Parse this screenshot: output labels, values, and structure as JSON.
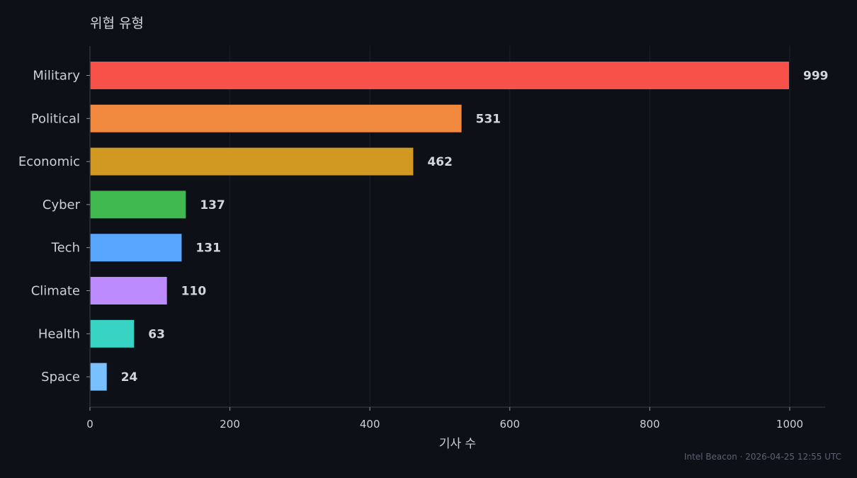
{
  "chart_data": {
    "type": "bar",
    "orientation": "horizontal",
    "title": "위협 유형",
    "xlabel": "기사 수",
    "ylabel": "",
    "categories": [
      "Military",
      "Political",
      "Economic",
      "Cyber",
      "Tech",
      "Climate",
      "Health",
      "Space"
    ],
    "values": [
      999,
      531,
      462,
      137,
      131,
      110,
      63,
      24
    ],
    "colors": [
      "#f85149",
      "#f0883e",
      "#d29922",
      "#3fb950",
      "#58a6ff",
      "#bc8cff",
      "#39d3c3",
      "#79c0ff"
    ],
    "xlim": [
      0,
      1050
    ],
    "xticks": [
      0,
      200,
      400,
      600,
      800,
      1000
    ],
    "grid": true
  },
  "footer": "Intel Beacon · 2026-04-25 12:55 UTC"
}
